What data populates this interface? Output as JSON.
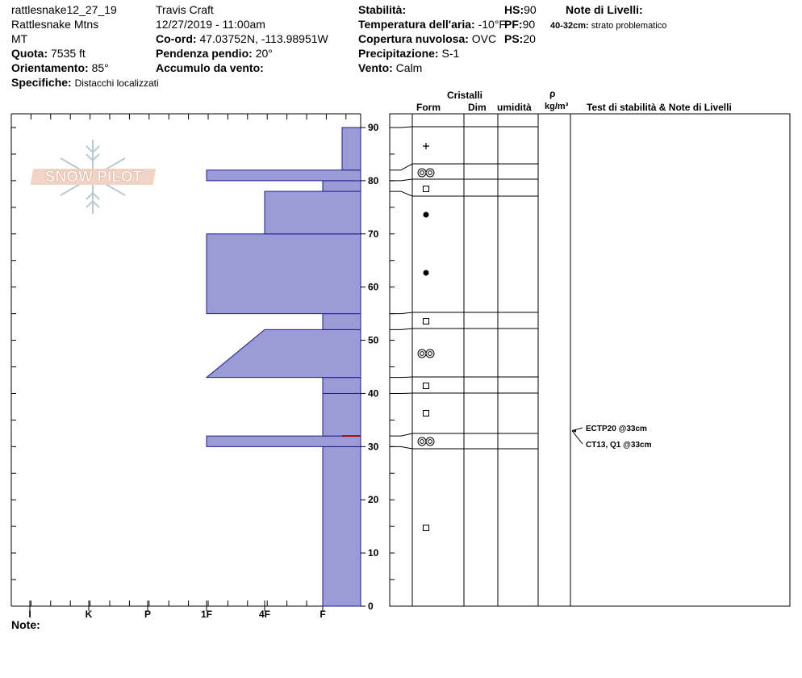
{
  "header": {
    "site_id": "rattlesnake12_27_19",
    "range": "Rattlesnake Mtns",
    "state": "MT",
    "elevation_label": "Quota:",
    "elevation_value": "7535 ft",
    "aspect_label": "Orientamento:",
    "aspect_value": "85°",
    "specifics_label": "Specifiche:",
    "specifics_value": "Distacchi localizzati",
    "observer": "Travis  Craft",
    "datetime": "12/27/2019 - 11:00am",
    "coord_label": "Co-ord:",
    "coord_value": "47.03752N, -113.98951W",
    "slope_label": "Pendenza pendio:",
    "slope_value": "20°",
    "wind_loading_label": "Accumulo da vento:",
    "stability_label": "Stabilità:",
    "air_temp_label": "Temperatura dell'aria:",
    "air_temp_value": "-10°F",
    "sky_label": "Copertura nuvolosa:",
    "sky_value": "OVC",
    "precip_label": "Precipitazione:",
    "precip_value": "S-1",
    "wind_label": "Vento:",
    "wind_value": "Calm",
    "hs_label": "HS:",
    "hs_value": "90",
    "pf_label": "PF:",
    "pf_value": "90",
    "ps_label": "PS:",
    "ps_value": "20",
    "layer_notes_label": "Note di Livelli:",
    "layer_note_range": "40-32cm:",
    "layer_note_text": "strato problematico"
  },
  "logo_text": "SNOW PILOT",
  "columns": {
    "crystals": "Cristalli",
    "form": "Form",
    "dim": "Dim",
    "moisture": "umidità",
    "rho": "ρ",
    "density_unit": "kg/m³",
    "tests": "Test di stabilità & Note di Livelli"
  },
  "footer": {
    "notes_label": "Note:"
  },
  "stability_tests": [
    {
      "text": "ECTP20 @33cm",
      "depth": 33
    },
    {
      "text": "CT13, Q1 @33cm",
      "depth": 33
    }
  ],
  "colors": {
    "hardness_fill": "#9b9bd7",
    "hardness_stroke": "#1e1e8c",
    "marker": "#b00000"
  },
  "chart_data": {
    "type": "area",
    "title": "",
    "xlabel": "",
    "ylabel": "",
    "x_categories": [
      "I",
      "K",
      "P",
      "1F",
      "4F",
      "F"
    ],
    "y_ticks": [
      0,
      10,
      20,
      30,
      40,
      50,
      60,
      70,
      80,
      90
    ],
    "ylim": [
      0,
      90
    ],
    "hardness_profile": [
      {
        "from": 0,
        "to": 30,
        "hardness": "F"
      },
      {
        "from": 30,
        "to": 32,
        "hardness": "1F"
      },
      {
        "from": 32,
        "to": 40,
        "hardness": "F"
      },
      {
        "from": 40,
        "to": 43,
        "hardness": "F"
      },
      {
        "from": 43,
        "to": 52,
        "hardness_bottom": "1F",
        "hardness_top": "4F"
      },
      {
        "from": 52,
        "to": 55,
        "hardness": "F"
      },
      {
        "from": 55,
        "to": 70,
        "hardness": "1F"
      },
      {
        "from": 70,
        "to": 78,
        "hardness": "4F"
      },
      {
        "from": 78,
        "to": 80,
        "hardness": "F"
      },
      {
        "from": 80,
        "to": 82,
        "hardness": "1F"
      },
      {
        "from": 82,
        "to": 90,
        "hardness": "F-"
      }
    ],
    "weak_layer_marker_depth": 32,
    "grain_layers": [
      {
        "from": 82,
        "to": 90,
        "form": "PP"
      },
      {
        "from": 80,
        "to": 82,
        "form": "SH"
      },
      {
        "from": 78,
        "to": 80,
        "form": "FC"
      },
      {
        "from": 70,
        "to": 78,
        "form": "RG"
      },
      {
        "from": 55,
        "to": 70,
        "form": "RG"
      },
      {
        "from": 52,
        "to": 55,
        "form": "FC"
      },
      {
        "from": 43,
        "to": 52,
        "form": "SH"
      },
      {
        "from": 40,
        "to": 43,
        "form": "FC"
      },
      {
        "from": 32,
        "to": 40,
        "form": "FC"
      },
      {
        "from": 30,
        "to": 32,
        "form": "SH"
      },
      {
        "from": 0,
        "to": 30,
        "form": "FC"
      }
    ]
  }
}
